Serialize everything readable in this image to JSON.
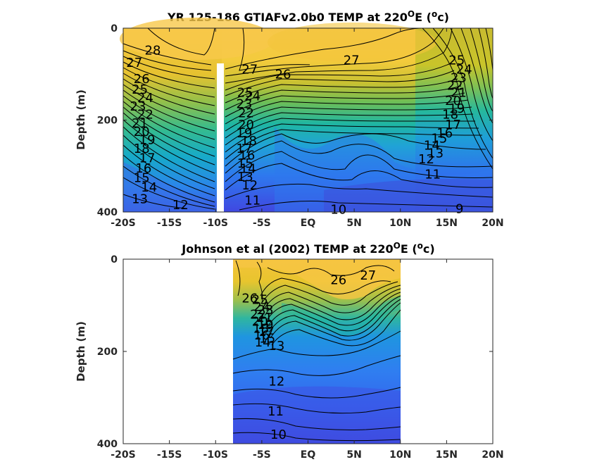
{
  "chart_data": [
    {
      "type": "contour",
      "title": "YR 125-186 GTIAFv2.0b0 TEMP at 220",
      "title_sup": "O",
      "title_tail": "E (",
      "title_unit_sup": "o",
      "title_unit": "c)",
      "ylabel": "Depth (m)",
      "xlim": [
        -20,
        20
      ],
      "ylim": [
        0,
        400
      ],
      "x_ticks": [
        -20,
        -15,
        -10,
        -5,
        0,
        5,
        10,
        15,
        20
      ],
      "x_tick_labels": [
        "-20S",
        "-15S",
        "-10S",
        "-5S",
        "EQ",
        "5N",
        "10N",
        "15N",
        "20N"
      ],
      "y_ticks": [
        0,
        200,
        400
      ],
      "y_tick_labels": [
        "0",
        "200",
        "400"
      ],
      "data_extent": [
        -20,
        20
      ],
      "gap": {
        "lat": -9.8,
        "from_depth": 80
      },
      "contour_labels": [
        {
          "text": "28",
          "lat": -16.8,
          "depth": 48
        },
        {
          "text": "27",
          "lat": -18.8,
          "depth": 75
        },
        {
          "text": "26",
          "lat": -18.0,
          "depth": 110
        },
        {
          "text": "25",
          "lat": -18.2,
          "depth": 133
        },
        {
          "text": "24",
          "lat": -17.6,
          "depth": 152
        },
        {
          "text": "23",
          "lat": -18.4,
          "depth": 170
        },
        {
          "text": "22",
          "lat": -17.6,
          "depth": 188
        },
        {
          "text": "21",
          "lat": -18.2,
          "depth": 207
        },
        {
          "text": "20",
          "lat": -18.0,
          "depth": 225
        },
        {
          "text": "19",
          "lat": -17.4,
          "depth": 243
        },
        {
          "text": "18",
          "lat": -18.0,
          "depth": 262
        },
        {
          "text": "17",
          "lat": -17.4,
          "depth": 283
        },
        {
          "text": "16",
          "lat": -17.8,
          "depth": 305
        },
        {
          "text": "15",
          "lat": -18.0,
          "depth": 326
        },
        {
          "text": "14",
          "lat": -17.2,
          "depth": 346
        },
        {
          "text": "13",
          "lat": -18.2,
          "depth": 372
        },
        {
          "text": "12",
          "lat": -13.8,
          "depth": 385
        },
        {
          "text": "27",
          "lat": -6.3,
          "depth": 90
        },
        {
          "text": "26",
          "lat": -2.7,
          "depth": 100
        },
        {
          "text": "25",
          "lat": -6.8,
          "depth": 140
        },
        {
          "text": "24",
          "lat": -6.0,
          "depth": 148
        },
        {
          "text": "23",
          "lat": -6.9,
          "depth": 165
        },
        {
          "text": "22",
          "lat": -6.7,
          "depth": 185
        },
        {
          "text": "20",
          "lat": -6.7,
          "depth": 210
        },
        {
          "text": "19",
          "lat": -6.9,
          "depth": 228
        },
        {
          "text": "18",
          "lat": -6.4,
          "depth": 245
        },
        {
          "text": "17",
          "lat": -6.9,
          "depth": 262
        },
        {
          "text": "16",
          "lat": -6.6,
          "depth": 277
        },
        {
          "text": "15",
          "lat": -6.8,
          "depth": 294
        },
        {
          "text": "14",
          "lat": -6.5,
          "depth": 306
        },
        {
          "text": "13",
          "lat": -6.8,
          "depth": 323
        },
        {
          "text": "12",
          "lat": -6.3,
          "depth": 342
        },
        {
          "text": "11",
          "lat": -6.0,
          "depth": 375
        },
        {
          "text": "27",
          "lat": 4.7,
          "depth": 70
        },
        {
          "text": "25",
          "lat": 16.1,
          "depth": 70
        },
        {
          "text": "24",
          "lat": 16.9,
          "depth": 90
        },
        {
          "text": "23",
          "lat": 16.3,
          "depth": 108
        },
        {
          "text": "22",
          "lat": 15.9,
          "depth": 125
        },
        {
          "text": "21",
          "lat": 16.3,
          "depth": 140
        },
        {
          "text": "20",
          "lat": 15.7,
          "depth": 158
        },
        {
          "text": "19",
          "lat": 16.1,
          "depth": 175
        },
        {
          "text": "18",
          "lat": 15.4,
          "depth": 188
        },
        {
          "text": "17",
          "lat": 15.7,
          "depth": 210
        },
        {
          "text": "16",
          "lat": 14.8,
          "depth": 228
        },
        {
          "text": "15",
          "lat": 14.2,
          "depth": 240
        },
        {
          "text": "14",
          "lat": 13.4,
          "depth": 255
        },
        {
          "text": "13",
          "lat": 13.8,
          "depth": 272
        },
        {
          "text": "12",
          "lat": 12.8,
          "depth": 285
        },
        {
          "text": "11",
          "lat": 13.5,
          "depth": 318
        },
        {
          "text": "10",
          "lat": 3.3,
          "depth": 395
        },
        {
          "text": "9",
          "lat": 16.4,
          "depth": 393
        }
      ]
    },
    {
      "type": "contour",
      "title": "Johnson et al (2002) TEMP at 220",
      "title_sup": "O",
      "title_tail": "E (",
      "title_unit_sup": "o",
      "title_unit": "c)",
      "ylabel": "Depth (m)",
      "xlim": [
        -20,
        20
      ],
      "ylim": [
        0,
        400
      ],
      "x_ticks": [
        -20,
        -15,
        -10,
        -5,
        0,
        5,
        10,
        15,
        20
      ],
      "x_tick_labels": [
        "-20S",
        "-15S",
        "-10S",
        "-5S",
        "EQ",
        "5N",
        "10N",
        "15N",
        "20N"
      ],
      "y_ticks": [
        0,
        200,
        400
      ],
      "y_tick_labels": [
        "0",
        "200",
        "400"
      ],
      "data_extent": [
        -8,
        10
      ],
      "contour_labels": [
        {
          "text": "27",
          "lat": 6.5,
          "depth": 35
        },
        {
          "text": "26",
          "lat": 3.3,
          "depth": 45
        },
        {
          "text": "26",
          "lat": -6.3,
          "depth": 85
        },
        {
          "text": "25",
          "lat": -5.2,
          "depth": 88
        },
        {
          "text": "24",
          "lat": -5.0,
          "depth": 103
        },
        {
          "text": "23",
          "lat": -4.6,
          "depth": 110
        },
        {
          "text": "22",
          "lat": -5.4,
          "depth": 120
        },
        {
          "text": "21",
          "lat": -4.7,
          "depth": 127
        },
        {
          "text": "20",
          "lat": -5.2,
          "depth": 135
        },
        {
          "text": "19",
          "lat": -4.6,
          "depth": 142
        },
        {
          "text": "18",
          "lat": -5.1,
          "depth": 150
        },
        {
          "text": "17",
          "lat": -4.5,
          "depth": 157
        },
        {
          "text": "16",
          "lat": -5.0,
          "depth": 165
        },
        {
          "text": "15",
          "lat": -4.4,
          "depth": 172
        },
        {
          "text": "14",
          "lat": -4.9,
          "depth": 180
        },
        {
          "text": "13",
          "lat": -3.4,
          "depth": 188
        },
        {
          "text": "12",
          "lat": -3.4,
          "depth": 265
        },
        {
          "text": "11",
          "lat": -3.5,
          "depth": 330
        },
        {
          "text": "10",
          "lat": -3.2,
          "depth": 380
        }
      ]
    }
  ]
}
